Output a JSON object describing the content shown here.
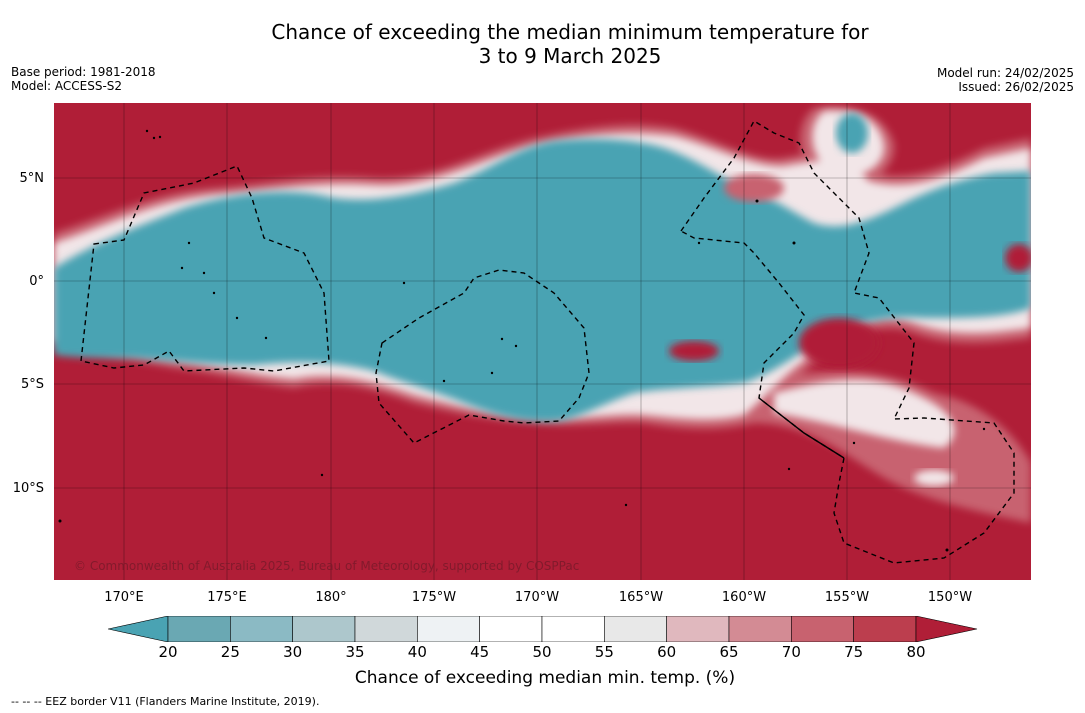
{
  "title": {
    "line1": "Chance of exceeding the median minimum temperature for",
    "line2": "3 to 9 March 2025"
  },
  "meta": {
    "base_period": "Base period: 1981-2018",
    "model": "Model: ACCESS-S2",
    "model_run": "Model run: 24/02/2025",
    "issued": "Issued: 26/02/2025"
  },
  "map": {
    "copyright": "© Commonwealth of Australia 2025, Bureau of Meteorology, supported by COSPPac",
    "lat_labels": [
      "5°N",
      "0°",
      "5°S",
      "10°S"
    ],
    "lon_labels": [
      "170°E",
      "175°E",
      "180°",
      "175°W",
      "170°W",
      "165°W",
      "160°W",
      "155°W",
      "150°W"
    ]
  },
  "colorbar": {
    "title": "Chance of exceeding median min. temp. (%)",
    "ticks": [
      "20",
      "25",
      "30",
      "35",
      "40",
      "45",
      "50",
      "55",
      "60",
      "65",
      "70",
      "75",
      "80"
    ],
    "colors": [
      "#6aa8b3",
      "#8bbac4",
      "#adc7cc",
      "#d0d8da",
      "#eef2f4",
      "#ffffff",
      "#ffffff",
      "#e8e8e8",
      "#e0b8be",
      "#d38b94",
      "#c8626f",
      "#bc3e4e"
    ],
    "low_color": "#4aa3b3",
    "high_color": "#b01e37"
  },
  "footer": {
    "eez_note": "-- -- -- EEZ border V11 (Flanders Marine Institute, 2019)."
  }
}
